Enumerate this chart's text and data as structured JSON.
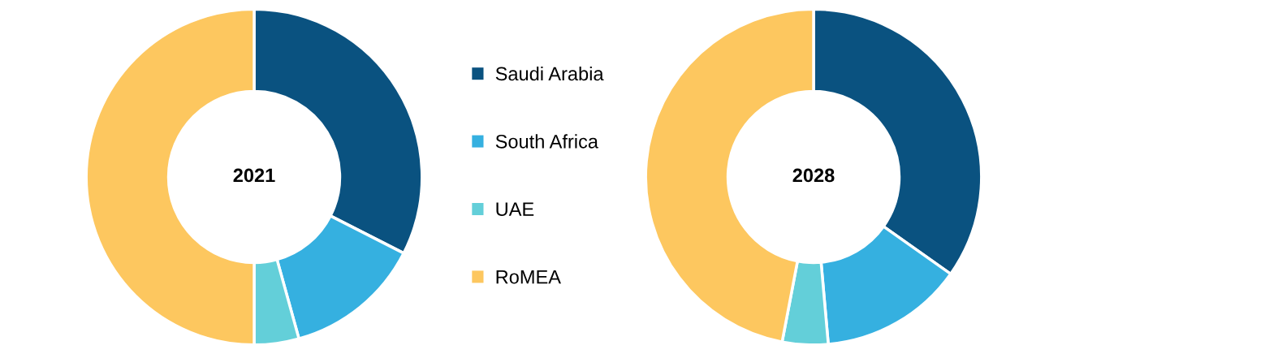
{
  "chart_data": [
    {
      "type": "donut",
      "title": "2021",
      "categories": [
        "Saudi Arabia",
        "South Africa",
        "UAE",
        "RoMEA"
      ],
      "values": [
        32.5,
        13.2,
        4.3,
        50.0
      ],
      "colors": [
        "#0a5280",
        "#35b0e0",
        "#63cfd9",
        "#fdc75f"
      ],
      "legend": "right"
    },
    {
      "type": "donut",
      "title": "2028",
      "values": [
        34.8,
        13.8,
        4.4,
        47.0
      ],
      "colors": [
        "#0a5280",
        "#35b0e0",
        "#63cfd9",
        "#fdc75f"
      ]
    }
  ]
}
